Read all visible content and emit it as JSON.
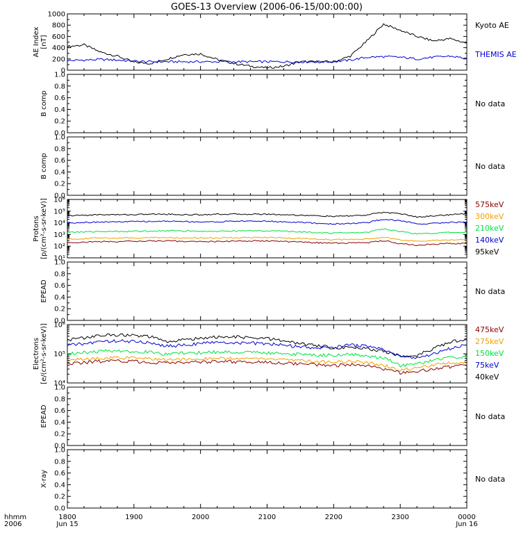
{
  "title": "GOES-13 Overview (2006-06-15/00:00:00)",
  "colors": {
    "black": "#000000",
    "blue": "#0000d0",
    "green": "#00e040",
    "orange": "#f0a000",
    "darkred": "#8b0000"
  },
  "x_axis": {
    "row1_label": "hhmm",
    "row2_label": "2006",
    "ticks": [
      {
        "label": "1800",
        "sub": "Jun 15"
      },
      {
        "label": "1900",
        "sub": ""
      },
      {
        "label": "2000",
        "sub": ""
      },
      {
        "label": "2100",
        "sub": ""
      },
      {
        "label": "2200",
        "sub": ""
      },
      {
        "label": "2300",
        "sub": ""
      },
      {
        "label": "0000",
        "sub": "Jun 16"
      }
    ],
    "range_hours": [
      18,
      24
    ]
  },
  "panels": [
    {
      "id": "ae",
      "ylabel": "AE Index\n[nT]",
      "yscale": "linear",
      "ylim": [
        0,
        1000
      ],
      "yticks": [
        "0",
        "200",
        "400",
        "600",
        "800",
        "1000"
      ],
      "legend": [
        {
          "text": "Kyoto AE",
          "color": "#000000"
        },
        {
          "text": "THEMIS AE",
          "color": "#0000d0"
        }
      ],
      "nodata": ""
    },
    {
      "id": "bcomp1",
      "ylabel": "B comp",
      "yscale": "linear",
      "ylim": [
        0,
        1
      ],
      "yticks": [
        "0.0",
        "0.2",
        "0.4",
        "0.6",
        "0.8",
        "1.0"
      ],
      "legend": [],
      "nodata": "No data"
    },
    {
      "id": "bcomp2",
      "ylabel": "B comp",
      "yscale": "linear",
      "ylim": [
        0,
        1
      ],
      "yticks": [
        "0.0",
        "0.2",
        "0.4",
        "0.6",
        "0.8",
        "1.0"
      ],
      "legend": [],
      "nodata": "No data"
    },
    {
      "id": "protons",
      "ylabel": "Protons\n[p/(cm²-s-sr-keV)]",
      "yscale": "log",
      "ylim": [
        10,
        1000000
      ],
      "yticks": [
        "10¹",
        "10²",
        "10³",
        "10⁴",
        "10⁵",
        "10⁶"
      ],
      "legend": [
        {
          "text": "575keV",
          "color": "#8b0000"
        },
        {
          "text": "300keV",
          "color": "#f0a000"
        },
        {
          "text": "210keV",
          "color": "#00e040"
        },
        {
          "text": "140keV",
          "color": "#0000d0"
        },
        {
          "text": "95keV",
          "color": "#000000"
        }
      ],
      "nodata": ""
    },
    {
      "id": "epead1",
      "ylabel": "EPEAD",
      "yscale": "linear",
      "ylim": [
        0,
        1
      ],
      "yticks": [
        "0.0",
        "0.2",
        "0.4",
        "0.6",
        "0.8",
        "1.0"
      ],
      "legend": [],
      "nodata": "No data"
    },
    {
      "id": "electrons",
      "ylabel": "Electrons\n[e/(cm²-s-sr-keV)]",
      "yscale": "log",
      "ylim": [
        10000,
        1000000
      ],
      "yticks": [
        "10⁴",
        "10⁵",
        "10⁶"
      ],
      "legend": [
        {
          "text": "475keV",
          "color": "#8b0000"
        },
        {
          "text": "275keV",
          "color": "#f0a000"
        },
        {
          "text": "150keV",
          "color": "#00e040"
        },
        {
          "text": "75keV",
          "color": "#0000d0"
        },
        {
          "text": "40keV",
          "color": "#000000"
        }
      ],
      "nodata": ""
    },
    {
      "id": "epead2",
      "ylabel": "EPEAD",
      "yscale": "linear",
      "ylim": [
        0,
        1
      ],
      "yticks": [
        "0.0",
        "0.2",
        "0.4",
        "0.6",
        "0.8",
        "1.0"
      ],
      "legend": [],
      "nodata": "No data"
    },
    {
      "id": "xray",
      "ylabel": "X-ray",
      "yscale": "linear",
      "ylim": [
        0,
        1
      ],
      "yticks": [
        "0.0",
        "0.2",
        "0.4",
        "0.6",
        "0.8",
        "1.0"
      ],
      "legend": [],
      "nodata": "No data"
    }
  ],
  "chart_data": {
    "type": "line",
    "title": "GOES-13 Overview (2006-06-15/00:00:00)",
    "xlabel": "hhmm",
    "x": [
      "1800",
      "1815",
      "1830",
      "1845",
      "1900",
      "1915",
      "1930",
      "1945",
      "2000",
      "2015",
      "2030",
      "2045",
      "2100",
      "2115",
      "2130",
      "2145",
      "2200",
      "2215",
      "2230",
      "2245",
      "2300",
      "2315",
      "2330",
      "2345",
      "0000"
    ],
    "panels": [
      {
        "id": "ae",
        "series": [
          {
            "name": "Kyoto AE",
            "values": [
              420,
              450,
              320,
              250,
              140,
              120,
              200,
              280,
              290,
              190,
              120,
              70,
              40,
              70,
              150,
              150,
              150,
              250,
              520,
              820,
              710,
              600,
              520,
              560,
              480
            ]
          },
          {
            "name": "THEMIS AE",
            "values": [
              170,
              180,
              190,
              180,
              160,
              150,
              150,
              150,
              150,
              150,
              150,
              150,
              150,
              150,
              150,
              150,
              150,
              180,
              230,
              240,
              230,
              200,
              230,
              250,
              210
            ]
          }
        ]
      },
      {
        "id": "protons",
        "series": [
          {
            "name": "95keV",
            "values": [
              40000,
              45000,
              50000,
              50000,
              50000,
              55000,
              55000,
              50000,
              50000,
              55000,
              55000,
              55000,
              55000,
              50000,
              45000,
              40000,
              35000,
              40000,
              45000,
              80000,
              60000,
              30000,
              40000,
              50000,
              60000
            ]
          },
          {
            "name": "140keV",
            "values": [
              10000,
              11000,
              12000,
              12000,
              13000,
              13000,
              14000,
              13000,
              12000,
              12000,
              14000,
              14000,
              14000,
              12000,
              11000,
              9000,
              8000,
              9000,
              10000,
              20000,
              15000,
              8000,
              9000,
              11000,
              12000
            ]
          },
          {
            "name": "210keV",
            "values": [
              1500,
              1700,
              1800,
              1800,
              1900,
              2000,
              2100,
              2000,
              1900,
              1900,
              2000,
              2100,
              2100,
              1900,
              1700,
              1500,
              1300,
              1400,
              1500,
              3000,
              1800,
              1100,
              1300,
              1500,
              1500
            ]
          },
          {
            "name": "300keV",
            "values": [
              400,
              450,
              500,
              500,
              500,
              550,
              550,
              500,
              500,
              500,
              550,
              550,
              550,
              500,
              450,
              400,
              350,
              380,
              400,
              600,
              350,
              250,
              300,
              350,
              350
            ]
          },
          {
            "name": "575keV",
            "values": [
              200,
              220,
              250,
              250,
              260,
              280,
              280,
              260,
              250,
              250,
              270,
              280,
              280,
              250,
              230,
              200,
              180,
              190,
              200,
              300,
              160,
              120,
              150,
              170,
              170
            ]
          }
        ]
      },
      {
        "id": "electrons",
        "series": [
          {
            "name": "40keV",
            "values": [
              300000,
              350000,
              420000,
              450000,
              420000,
              380000,
              250000,
              300000,
              350000,
              370000,
              380000,
              350000,
              330000,
              280000,
              220000,
              190000,
              160000,
              170000,
              150000,
              120000,
              80000,
              90000,
              150000,
              250000,
              320000
            ]
          },
          {
            "name": "75keV",
            "values": [
              200000,
              220000,
              260000,
              280000,
              260000,
              240000,
              180000,
              200000,
              230000,
              240000,
              240000,
              230000,
              220000,
              200000,
              170000,
              160000,
              170000,
              200000,
              180000,
              140000,
              80000,
              70000,
              100000,
              150000,
              200000
            ]
          },
          {
            "name": "150keV",
            "values": [
              100000,
              110000,
              120000,
              130000,
              120000,
              115000,
              95000,
              105000,
              110000,
              115000,
              115000,
              110000,
              110000,
              100000,
              95000,
              90000,
              90000,
              95000,
              85000,
              70000,
              40000,
              45000,
              60000,
              75000,
              80000
            ]
          },
          {
            "name": "275keV",
            "values": [
              60000,
              65000,
              70000,
              75000,
              70000,
              68000,
              60000,
              65000,
              68000,
              70000,
              70000,
              68000,
              68000,
              62000,
              60000,
              55000,
              52000,
              55000,
              50000,
              40000,
              28000,
              32000,
              40000,
              48000,
              52000
            ]
          },
          {
            "name": "475keV",
            "values": [
              45000,
              50000,
              55000,
              58000,
              55000,
              52000,
              48000,
              50000,
              52000,
              54000,
              54000,
              52000,
              52000,
              48000,
              46000,
              42000,
              40000,
              42000,
              38000,
              30000,
              22000,
              25000,
              30000,
              36000,
              40000
            ]
          }
        ]
      }
    ]
  }
}
